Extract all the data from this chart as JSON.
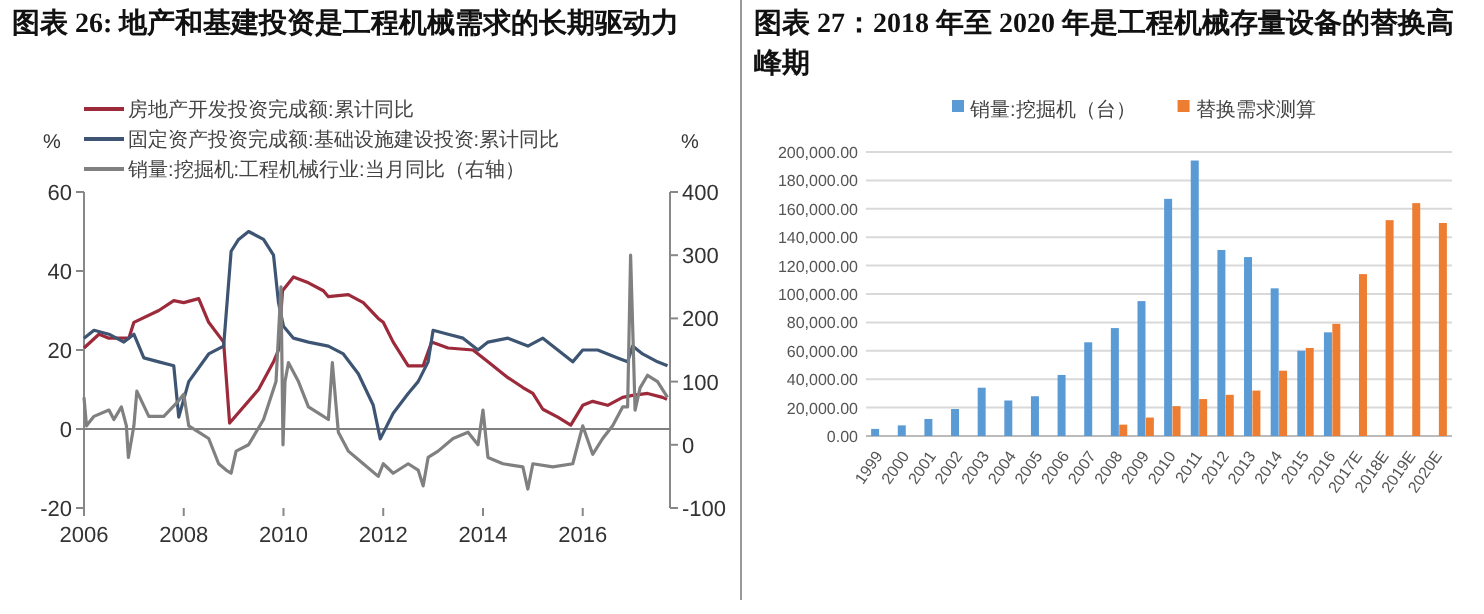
{
  "chart_data": [
    {
      "type": "line",
      "title": "图表 26: 地产和基建投资是工程机械需求的长期驱动力",
      "ylabel": "%",
      "y2label": "%",
      "xlim": [
        2006,
        2017.75
      ],
      "xticks": [
        2006,
        2008,
        2010,
        2012,
        2014,
        2016
      ],
      "ylim": [
        -20,
        60
      ],
      "yticks": [
        -20,
        0,
        20,
        40,
        60
      ],
      "y2lim": [
        -100,
        400
      ],
      "y2ticks": [
        -100,
        0,
        100,
        200,
        300,
        400
      ],
      "legend": "top left",
      "ref_lines": [
        {
          "axis": "y",
          "value": 0,
          "color": "#808080"
        }
      ],
      "series": [
        {
          "name": "房地产开发投资完成额:累计同比",
          "color": "#9c2a3a",
          "x": [
            2006,
            2006.3,
            2006.5,
            2006.9,
            2007.0,
            2007.5,
            2007.8,
            2008.0,
            2008.3,
            2008.5,
            2008.8,
            2008.92,
            2009.5,
            2009.8,
            2009.9,
            2009.98,
            2010.2,
            2010.5,
            2010.8,
            2010.9,
            2011.3,
            2011.6,
            2011.9,
            2012.0,
            2012.2,
            2012.5,
            2012.8,
            2012.97,
            2013.3,
            2013.8,
            2014.1,
            2014.5,
            2014.8,
            2015.0,
            2015.2,
            2015.5,
            2015.76,
            2016.0,
            2016.2,
            2016.5,
            2016.8,
            2017.0,
            2017.3,
            2017.6,
            2017.69
          ],
          "values": [
            20.5,
            24,
            23,
            23,
            27,
            30,
            32.5,
            32,
            33,
            27,
            22,
            1.5,
            10,
            17,
            20,
            35,
            38.5,
            37,
            35,
            33.5,
            34,
            32,
            28,
            27,
            22,
            16,
            16,
            22,
            20.5,
            20,
            17,
            13,
            10.5,
            9,
            5,
            3,
            1,
            6,
            7,
            6,
            8,
            8.5,
            9,
            8,
            7.5
          ]
        },
        {
          "name": "固定资产投资完成额:基础设施建设投资:累计同比",
          "color": "#3d5573",
          "x": [
            2006,
            2006.2,
            2006.5,
            2006.8,
            2007.0,
            2007.2,
            2007.5,
            2007.8,
            2007.9,
            2008.1,
            2008.5,
            2008.8,
            2008.95,
            2009.1,
            2009.3,
            2009.6,
            2009.8,
            2009.9,
            2010.0,
            2010.2,
            2010.5,
            2010.9,
            2011.2,
            2011.5,
            2011.8,
            2011.94,
            2012.2,
            2012.5,
            2012.7,
            2012.9,
            2013.0,
            2013.3,
            2013.6,
            2013.9,
            2014.1,
            2014.5,
            2014.9,
            2015.2,
            2015.5,
            2015.8,
            2016.0,
            2016.3,
            2016.7,
            2016.9,
            2017.0,
            2017.2,
            2017.5,
            2017.7
          ],
          "values": [
            23,
            25,
            24,
            22,
            24,
            18,
            17,
            16,
            3,
            12,
            19,
            21,
            45,
            48,
            50,
            48,
            44,
            32,
            26,
            23,
            22,
            21,
            19,
            14,
            6,
            -2.5,
            4,
            9,
            12,
            17,
            25,
            24,
            23,
            20,
            22,
            23,
            21,
            23,
            20,
            17,
            20,
            20,
            18,
            17,
            21,
            19,
            17,
            16
          ]
        },
        {
          "name": "销量:挖掘机:工程机械行业:当月同比（右轴）",
          "color": "#808080",
          "axis": "y2",
          "x": [
            2006,
            2006.05,
            2006.2,
            2006.5,
            2006.6,
            2006.75,
            2006.85,
            2006.89,
            2007.0,
            2007.06,
            2007.3,
            2007.6,
            2007.9,
            2008.0,
            2008.1,
            2008.3,
            2008.5,
            2008.7,
            2008.85,
            2008.95,
            2009.05,
            2009.3,
            2009.6,
            2009.85,
            2009.95,
            2009.99,
            2010.03,
            2010.1,
            2010.3,
            2010.5,
            2010.7,
            2010.9,
            2010.98,
            2011.1,
            2011.3,
            2011.6,
            2011.9,
            2012.0,
            2012.2,
            2012.5,
            2012.7,
            2012.8,
            2012.9,
            2013.1,
            2013.4,
            2013.7,
            2013.9,
            2014.0,
            2014.1,
            2014.4,
            2014.8,
            2014.9,
            2015.0,
            2015.4,
            2015.8,
            2016.0,
            2016.2,
            2016.4,
            2016.6,
            2016.8,
            2016.9,
            2016.96,
            2017.05,
            2017.15,
            2017.3,
            2017.5,
            2017.7
          ],
          "values": [
            75,
            30,
            45,
            55,
            40,
            60,
            30,
            -20,
            30,
            85,
            45,
            45,
            70,
            80,
            30,
            20,
            10,
            -30,
            -40,
            -45,
            -10,
            0,
            40,
            100,
            250,
            0,
            100,
            130,
            100,
            60,
            50,
            40,
            130,
            20,
            -10,
            -30,
            -50,
            -30,
            -45,
            -30,
            -40,
            -65,
            -20,
            -10,
            10,
            20,
            0,
            55,
            -20,
            -30,
            -35,
            -70,
            -30,
            -35,
            -30,
            30,
            -15,
            10,
            30,
            60,
            60,
            300,
            55,
            90,
            110,
            100,
            75
          ]
        }
      ]
    },
    {
      "type": "bar",
      "title": "图表 27：2018 年至 2020 年是工程机械存量设备的替换高峰期",
      "categories": [
        "1999",
        "2000",
        "2001",
        "2002",
        "2003",
        "2004",
        "2005",
        "2006",
        "2007",
        "2008",
        "2009",
        "2010",
        "2011",
        "2012",
        "2013",
        "2014",
        "2015",
        "2016",
        "2017E",
        "2018E",
        "2019E",
        "2020E"
      ],
      "ylim": [
        0,
        200000
      ],
      "yticks": [
        {
          "value": 0,
          "label": "0.00"
        },
        {
          "value": 20000,
          "label": "20,000.00"
        },
        {
          "value": 40000,
          "label": "40,000.00"
        },
        {
          "value": 60000,
          "label": "60,000.00"
        },
        {
          "value": 80000,
          "label": "80,000.00"
        },
        {
          "value": 100000,
          "label": "100,000.00"
        },
        {
          "value": 120000,
          "label": "120,000.00"
        },
        {
          "value": 140000,
          "label": "140,000.00"
        },
        {
          "value": 160000,
          "label": "160,000.00"
        },
        {
          "value": 180000,
          "label": "180,000.00"
        },
        {
          "value": 200000,
          "label": "200,000.00"
        }
      ],
      "grid": "y",
      "legend": "top",
      "series": [
        {
          "name": "销量:挖掘机（台）",
          "color": "#5b9bd5",
          "values": [
            5000,
            7500,
            12000,
            19000,
            34000,
            25000,
            28000,
            43000,
            66000,
            76000,
            95000,
            167000,
            194000,
            131000,
            126000,
            104000,
            60000,
            73000,
            null,
            null,
            null,
            null
          ]
        },
        {
          "name": "替换需求测算",
          "color": "#ed7d31",
          "values": [
            null,
            null,
            null,
            null,
            null,
            null,
            null,
            null,
            null,
            8000,
            13000,
            21000,
            26000,
            29000,
            32000,
            46000,
            62000,
            79000,
            114000,
            152000,
            164000,
            150000
          ]
        }
      ]
    }
  ]
}
